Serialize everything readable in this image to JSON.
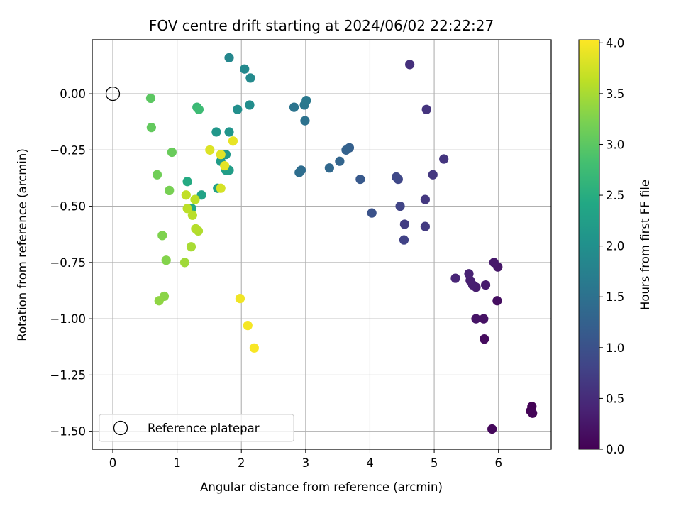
{
  "chart_data": {
    "type": "scatter",
    "title": "FOV centre drift starting at 2024/06/02 22:22:27",
    "xlabel": "Angular distance from reference (arcmin)",
    "ylabel": "Rotation from reference (arcmin)",
    "xlim": [
      -0.32,
      6.82
    ],
    "ylim": [
      -1.58,
      0.24
    ],
    "xticks": [
      0,
      1,
      2,
      3,
      4,
      5,
      6
    ],
    "yticks": [
      0.0,
      -0.25,
      -0.5,
      -0.75,
      -1.0,
      -1.25,
      -1.5
    ],
    "ytick_labels": [
      "0.00",
      "−0.25",
      "−0.50",
      "−0.75",
      "−1.00",
      "−1.25",
      "−1.50"
    ],
    "grid": true,
    "colormap": "viridis",
    "colorbar": {
      "label": "Hours from first FF file",
      "range": [
        0,
        4.03
      ],
      "ticks": [
        0.0,
        0.5,
        1.0,
        1.5,
        2.0,
        2.5,
        3.0,
        3.5,
        4.0
      ],
      "tick_labels": [
        "0.0",
        "0.5",
        "1.0",
        "1.5",
        "2.0",
        "2.5",
        "3.0",
        "3.5",
        "4.0"
      ]
    },
    "legend": {
      "position": "lower-left",
      "entries": [
        "Reference platepar"
      ]
    },
    "reference_point": {
      "x": 0,
      "y": 0
    },
    "points": [
      {
        "x": 6.52,
        "y": -1.39,
        "c": 0.02
      },
      {
        "x": 6.5,
        "y": -1.41,
        "c": 0.03
      },
      {
        "x": 6.53,
        "y": -1.42,
        "c": 0.05
      },
      {
        "x": 5.9,
        "y": -1.49,
        "c": 0.08
      },
      {
        "x": 5.78,
        "y": -1.09,
        "c": 0.12
      },
      {
        "x": 5.98,
        "y": -0.92,
        "c": 0.15
      },
      {
        "x": 5.77,
        "y": -1.0,
        "c": 0.2
      },
      {
        "x": 5.65,
        "y": -1.0,
        "c": 0.22
      },
      {
        "x": 5.99,
        "y": -0.77,
        "c": 0.25
      },
      {
        "x": 5.93,
        "y": -0.75,
        "c": 0.28
      },
      {
        "x": 5.8,
        "y": -0.85,
        "c": 0.3
      },
      {
        "x": 5.65,
        "y": -0.86,
        "c": 0.32
      },
      {
        "x": 5.6,
        "y": -0.85,
        "c": 0.34
      },
      {
        "x": 5.56,
        "y": -0.83,
        "c": 0.36
      },
      {
        "x": 5.54,
        "y": -0.8,
        "c": 0.38
      },
      {
        "x": 5.33,
        "y": -0.82,
        "c": 0.42
      },
      {
        "x": 4.62,
        "y": 0.13,
        "c": 0.55
      },
      {
        "x": 4.88,
        "y": -0.07,
        "c": 0.6
      },
      {
        "x": 5.15,
        "y": -0.29,
        "c": 0.62
      },
      {
        "x": 4.98,
        "y": -0.36,
        "c": 0.64
      },
      {
        "x": 4.86,
        "y": -0.47,
        "c": 0.66
      },
      {
        "x": 4.86,
        "y": -0.59,
        "c": 0.68
      },
      {
        "x": 4.54,
        "y": -0.58,
        "c": 0.72
      },
      {
        "x": 4.53,
        "y": -0.65,
        "c": 0.78
      },
      {
        "x": 4.47,
        "y": -0.5,
        "c": 0.82
      },
      {
        "x": 4.44,
        "y": -0.38,
        "c": 0.85
      },
      {
        "x": 4.41,
        "y": -0.37,
        "c": 0.88
      },
      {
        "x": 4.03,
        "y": -0.53,
        "c": 1.02
      },
      {
        "x": 3.85,
        "y": -0.38,
        "c": 1.12
      },
      {
        "x": 3.68,
        "y": -0.24,
        "c": 1.22
      },
      {
        "x": 3.63,
        "y": -0.25,
        "c": 1.26
      },
      {
        "x": 3.53,
        "y": -0.3,
        "c": 1.3
      },
      {
        "x": 3.37,
        "y": -0.33,
        "c": 1.35
      },
      {
        "x": 2.93,
        "y": -0.34,
        "c": 1.42
      },
      {
        "x": 2.9,
        "y": -0.35,
        "c": 1.45
      },
      {
        "x": 2.99,
        "y": -0.12,
        "c": 1.52
      },
      {
        "x": 2.82,
        "y": -0.06,
        "c": 1.55
      },
      {
        "x": 2.98,
        "y": -0.05,
        "c": 1.6
      },
      {
        "x": 3.01,
        "y": -0.03,
        "c": 1.63
      },
      {
        "x": 1.81,
        "y": 0.16,
        "c": 1.85
      },
      {
        "x": 2.05,
        "y": 0.11,
        "c": 1.88
      },
      {
        "x": 2.14,
        "y": 0.07,
        "c": 1.9
      },
      {
        "x": 2.13,
        "y": -0.05,
        "c": 1.95
      },
      {
        "x": 1.94,
        "y": -0.07,
        "c": 1.98
      },
      {
        "x": 1.81,
        "y": -0.17,
        "c": 2.08
      },
      {
        "x": 1.61,
        "y": -0.17,
        "c": 2.12
      },
      {
        "x": 1.76,
        "y": -0.27,
        "c": 2.16
      },
      {
        "x": 1.68,
        "y": -0.3,
        "c": 2.2
      },
      {
        "x": 1.81,
        "y": -0.34,
        "c": 2.22
      },
      {
        "x": 1.76,
        "y": -0.34,
        "c": 2.25
      },
      {
        "x": 1.63,
        "y": -0.42,
        "c": 2.28
      },
      {
        "x": 1.38,
        "y": -0.45,
        "c": 2.33
      },
      {
        "x": 1.23,
        "y": -0.51,
        "c": 2.4
      },
      {
        "x": 1.16,
        "y": -0.39,
        "c": 2.45
      },
      {
        "x": 1.31,
        "y": -0.06,
        "c": 2.7
      },
      {
        "x": 1.34,
        "y": -0.07,
        "c": 2.75
      },
      {
        "x": 0.59,
        "y": -0.02,
        "c": 3.0
      },
      {
        "x": 0.6,
        "y": -0.15,
        "c": 3.05
      },
      {
        "x": 0.92,
        "y": -0.26,
        "c": 3.1
      },
      {
        "x": 0.69,
        "y": -0.36,
        "c": 3.15
      },
      {
        "x": 0.88,
        "y": -0.43,
        "c": 3.2
      },
      {
        "x": 0.77,
        "y": -0.63,
        "c": 3.25
      },
      {
        "x": 0.83,
        "y": -0.74,
        "c": 3.28
      },
      {
        "x": 0.8,
        "y": -0.9,
        "c": 3.32
      },
      {
        "x": 0.72,
        "y": -0.92,
        "c": 3.35
      },
      {
        "x": 1.12,
        "y": -0.75,
        "c": 3.45
      },
      {
        "x": 1.22,
        "y": -0.68,
        "c": 3.5
      },
      {
        "x": 1.33,
        "y": -0.61,
        "c": 3.55
      },
      {
        "x": 1.29,
        "y": -0.6,
        "c": 3.58
      },
      {
        "x": 1.24,
        "y": -0.54,
        "c": 3.6
      },
      {
        "x": 1.16,
        "y": -0.51,
        "c": 3.62
      },
      {
        "x": 1.14,
        "y": -0.45,
        "c": 3.65
      },
      {
        "x": 1.28,
        "y": -0.47,
        "c": 3.63
      },
      {
        "x": 1.68,
        "y": -0.42,
        "c": 3.78
      },
      {
        "x": 1.51,
        "y": -0.25,
        "c": 3.82
      },
      {
        "x": 1.68,
        "y": -0.27,
        "c": 3.85
      },
      {
        "x": 1.74,
        "y": -0.32,
        "c": 3.88
      },
      {
        "x": 1.87,
        "y": -0.21,
        "c": 3.9
      },
      {
        "x": 1.98,
        "y": -0.91,
        "c": 3.95
      },
      {
        "x": 2.1,
        "y": -1.03,
        "c": 3.98
      },
      {
        "x": 2.2,
        "y": -1.13,
        "c": 4.0
      }
    ]
  }
}
